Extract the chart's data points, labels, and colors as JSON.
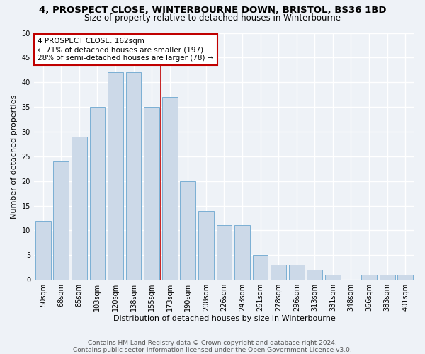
{
  "title": "4, PROSPECT CLOSE, WINTERBOURNE DOWN, BRISTOL, BS36 1BD",
  "subtitle": "Size of property relative to detached houses in Winterbourne",
  "xlabel": "Distribution of detached houses by size in Winterbourne",
  "ylabel": "Number of detached properties",
  "bar_labels": [
    "50sqm",
    "68sqm",
    "85sqm",
    "103sqm",
    "120sqm",
    "138sqm",
    "155sqm",
    "173sqm",
    "190sqm",
    "208sqm",
    "226sqm",
    "243sqm",
    "261sqm",
    "278sqm",
    "296sqm",
    "313sqm",
    "331sqm",
    "348sqm",
    "366sqm",
    "383sqm",
    "401sqm"
  ],
  "bar_values": [
    12,
    24,
    29,
    35,
    42,
    42,
    35,
    37,
    20,
    14,
    11,
    11,
    5,
    3,
    3,
    2,
    1,
    0,
    1,
    1,
    1
  ],
  "bar_color": "#ccd9e8",
  "bar_edge_color": "#7aafd4",
  "vline_x_index": 6.5,
  "vline_color": "#c00000",
  "annotation_text": "4 PROSPECT CLOSE: 162sqm\n← 71% of detached houses are smaller (197)\n28% of semi-detached houses are larger (78) →",
  "annotation_box_color": "#ffffff",
  "annotation_box_edge_color": "#c00000",
  "ylim": [
    0,
    50
  ],
  "yticks": [
    0,
    5,
    10,
    15,
    20,
    25,
    30,
    35,
    40,
    45,
    50
  ],
  "footer_text": "Contains HM Land Registry data © Crown copyright and database right 2024.\nContains public sector information licensed under the Open Government Licence v3.0.",
  "background_color": "#eef2f7",
  "grid_color": "#ffffff",
  "title_fontsize": 9.5,
  "subtitle_fontsize": 8.5,
  "label_fontsize": 8,
  "tick_fontsize": 7,
  "annotation_fontsize": 7.5,
  "footer_fontsize": 6.5
}
